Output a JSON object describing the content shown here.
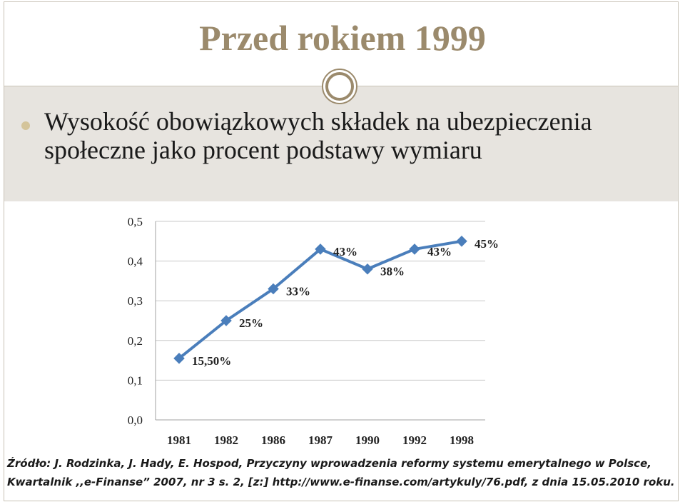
{
  "slide": {
    "title": "Przed rokiem 1999",
    "bullet": "Wysokość obowiązkowych składek na ubezpieczenia społeczne jako procent podstawy wymiaru",
    "source_line1": "Źródło: J. Rodzinka, J. Hady, E. Hospod, Przyczyny wprowadzenia reformy systemu emerytalnego w Polsce,",
    "source_line2": "Kwartalnik ,,e-Finanse” 2007, nr 3 s. 2, [z:] http://www.e-finanse.com/artykuly/76.pdf, z dnia 15.05.2010 roku."
  },
  "colors": {
    "title": "#9b8a6c",
    "band": "#e7e4df",
    "line": "#4a7ebb",
    "grid": "#c8c8c8"
  },
  "chart_data": {
    "type": "line",
    "categories": [
      "1981",
      "1982",
      "1986",
      "1987",
      "1990",
      "1992",
      "1998"
    ],
    "values": [
      0.155,
      0.25,
      0.33,
      0.43,
      0.38,
      0.43,
      0.45
    ],
    "data_labels": [
      "15,50%",
      "25%",
      "33%",
      "43%",
      "38%",
      "43%",
      "45%"
    ],
    "y_ticks": [
      "0,0",
      "0,1",
      "0,2",
      "0,3",
      "0,4",
      "0,5"
    ],
    "ylim": [
      0,
      0.5
    ],
    "grid": true,
    "legend": "none"
  }
}
